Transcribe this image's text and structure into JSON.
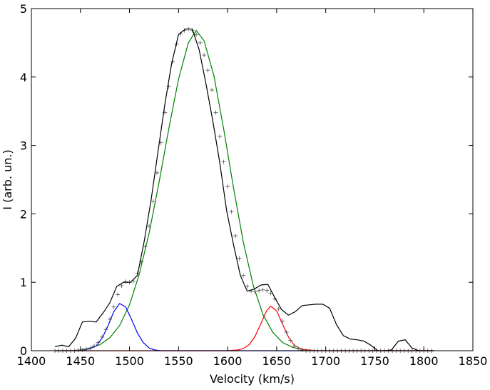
{
  "chart_data": {
    "type": "line",
    "xlabel": "Velocity (km/s)",
    "ylabel": "I (arb. un.)",
    "xlim": [
      1400,
      1850
    ],
    "ylim": [
      0,
      5
    ],
    "x_ticks": [
      "1400",
      "1450",
      "1500",
      "1550",
      "1600",
      "1650",
      "1700",
      "1750",
      "1800",
      "1850"
    ],
    "y_ticks": [
      "0",
      "1",
      "2",
      "3",
      "4",
      "5"
    ],
    "grid": false,
    "colors": {
      "observed": "#000000",
      "fit_total": "#555555",
      "gaussian_1": "#0000ff",
      "gaussian_2": "#008000",
      "gaussian_3": "#ff0000"
    },
    "series": [
      {
        "key": "observed",
        "style": "line",
        "x": [
          1424,
          1431,
          1438,
          1445,
          1452,
          1459,
          1466,
          1473,
          1480,
          1487,
          1494,
          1501,
          1508,
          1515,
          1522,
          1529,
          1536,
          1543,
          1550,
          1557,
          1564,
          1571,
          1578,
          1585,
          1592,
          1599,
          1606,
          1613,
          1620,
          1627,
          1634,
          1641,
          1648,
          1655,
          1662,
          1669,
          1676,
          1683,
          1690,
          1697,
          1704,
          1711,
          1718,
          1725,
          1732,
          1739,
          1746,
          1753,
          1760,
          1767,
          1774,
          1781,
          1788,
          1795,
          1802,
          1809
        ],
        "y": [
          0.06,
          0.08,
          0.06,
          0.18,
          0.42,
          0.43,
          0.42,
          0.55,
          0.7,
          0.94,
          1.0,
          1.0,
          1.1,
          1.6,
          2.2,
          2.9,
          3.6,
          4.2,
          4.62,
          4.7,
          4.7,
          4.4,
          3.9,
          3.35,
          2.75,
          2.05,
          1.55,
          1.1,
          0.87,
          0.9,
          0.96,
          0.97,
          0.78,
          0.6,
          0.52,
          0.57,
          0.66,
          0.67,
          0.68,
          0.68,
          0.62,
          0.38,
          0.22,
          0.17,
          0.16,
          0.14,
          0.08,
          0.0,
          0.0,
          0.01,
          0.14,
          0.16,
          0.04,
          0.0,
          0.0,
          0.0
        ]
      },
      {
        "key": "fit_total",
        "style": "markers",
        "x": [
          1424,
          1428,
          1432,
          1436,
          1440,
          1444,
          1448,
          1452,
          1456,
          1460,
          1464,
          1468,
          1472,
          1476,
          1480,
          1484,
          1488,
          1492,
          1496,
          1500,
          1504,
          1508,
          1512,
          1516,
          1520,
          1524,
          1528,
          1532,
          1536,
          1540,
          1544,
          1548,
          1552,
          1556,
          1560,
          1564,
          1568,
          1572,
          1576,
          1580,
          1584,
          1588,
          1592,
          1596,
          1600,
          1604,
          1608,
          1612,
          1616,
          1620,
          1624,
          1628,
          1632,
          1636,
          1640,
          1644,
          1648,
          1652,
          1656,
          1660,
          1664,
          1668,
          1672,
          1676,
          1680,
          1684,
          1688,
          1692,
          1696,
          1700,
          1704,
          1708,
          1712,
          1716,
          1720,
          1724,
          1728,
          1732,
          1736,
          1740,
          1744,
          1748,
          1752,
          1756,
          1760,
          1764,
          1768,
          1772,
          1776,
          1780,
          1784,
          1788,
          1792,
          1796,
          1800,
          1804,
          1808
        ],
        "y": [
          0.0,
          0.0,
          0.0,
          0.0,
          0.0,
          0.0,
          0.01,
          0.01,
          0.02,
          0.04,
          0.07,
          0.12,
          0.2,
          0.31,
          0.46,
          0.64,
          0.82,
          0.95,
          1.01,
          1.0,
          1.02,
          1.13,
          1.3,
          1.52,
          1.82,
          2.18,
          2.6,
          3.04,
          3.48,
          3.86,
          4.22,
          4.48,
          4.63,
          4.68,
          4.7,
          4.68,
          4.62,
          4.5,
          4.32,
          4.1,
          3.81,
          3.48,
          3.13,
          2.76,
          2.4,
          2.03,
          1.68,
          1.35,
          1.1,
          0.94,
          0.87,
          0.86,
          0.88,
          0.89,
          0.88,
          0.84,
          0.76,
          0.61,
          0.43,
          0.27,
          0.15,
          0.07,
          0.03,
          0.01,
          0.0,
          0.0,
          0.0,
          0.0,
          0.0,
          0.0,
          0.0,
          0.0,
          0.0,
          0.0,
          0.0,
          0.0,
          0.0,
          0.0,
          0.0,
          0.0,
          0.0,
          0.0,
          0.0,
          0.0,
          0.0,
          0.0,
          0.0,
          0.0,
          0.0,
          0.0,
          0.0,
          0.0,
          0.0,
          0.0,
          0.0,
          0.0,
          0.0
        ]
      },
      {
        "key": "gaussian_1",
        "style": "line",
        "x": [
          1424,
          1430,
          1436,
          1442,
          1448,
          1454,
          1460,
          1466,
          1472,
          1478,
          1484,
          1490,
          1496,
          1502,
          1508,
          1514,
          1520,
          1526,
          1532,
          1538,
          1544,
          1550,
          1560,
          1570,
          1580,
          1600,
          1620,
          1650,
          1700,
          1750,
          1800,
          1810
        ],
        "y": [
          0.0,
          0.0,
          0.0,
          0.0,
          0.0,
          0.01,
          0.03,
          0.07,
          0.18,
          0.36,
          0.57,
          0.69,
          0.64,
          0.46,
          0.26,
          0.12,
          0.04,
          0.01,
          0.0,
          0.0,
          0.0,
          0.0,
          0.0,
          0.0,
          0.0,
          0.0,
          0.0,
          0.0,
          0.0,
          0.0,
          0.0,
          0.0
        ]
      },
      {
        "key": "gaussian_2",
        "style": "line",
        "x": [
          1424,
          1440,
          1450,
          1460,
          1470,
          1480,
          1490,
          1500,
          1510,
          1520,
          1530,
          1540,
          1550,
          1560,
          1568,
          1576,
          1586,
          1596,
          1606,
          1616,
          1626,
          1636,
          1646,
          1656,
          1666,
          1676,
          1690,
          1720,
          1760,
          1810
        ],
        "y": [
          0.0,
          0.0,
          0.01,
          0.04,
          0.09,
          0.19,
          0.37,
          0.67,
          1.12,
          1.72,
          2.45,
          3.24,
          3.97,
          4.5,
          4.68,
          4.53,
          4.02,
          3.24,
          2.38,
          1.59,
          0.96,
          0.53,
          0.27,
          0.12,
          0.05,
          0.02,
          0.0,
          0.0,
          0.0,
          0.0
        ]
      },
      {
        "key": "gaussian_3",
        "style": "line",
        "x": [
          1424,
          1560,
          1600,
          1610,
          1616,
          1622,
          1628,
          1634,
          1640,
          1644,
          1650,
          1656,
          1662,
          1668,
          1674,
          1680,
          1690,
          1720,
          1810
        ],
        "y": [
          0.0,
          0.0,
          0.0,
          0.01,
          0.03,
          0.09,
          0.21,
          0.4,
          0.59,
          0.65,
          0.58,
          0.39,
          0.2,
          0.08,
          0.03,
          0.01,
          0.0,
          0.0,
          0.0
        ]
      }
    ]
  }
}
